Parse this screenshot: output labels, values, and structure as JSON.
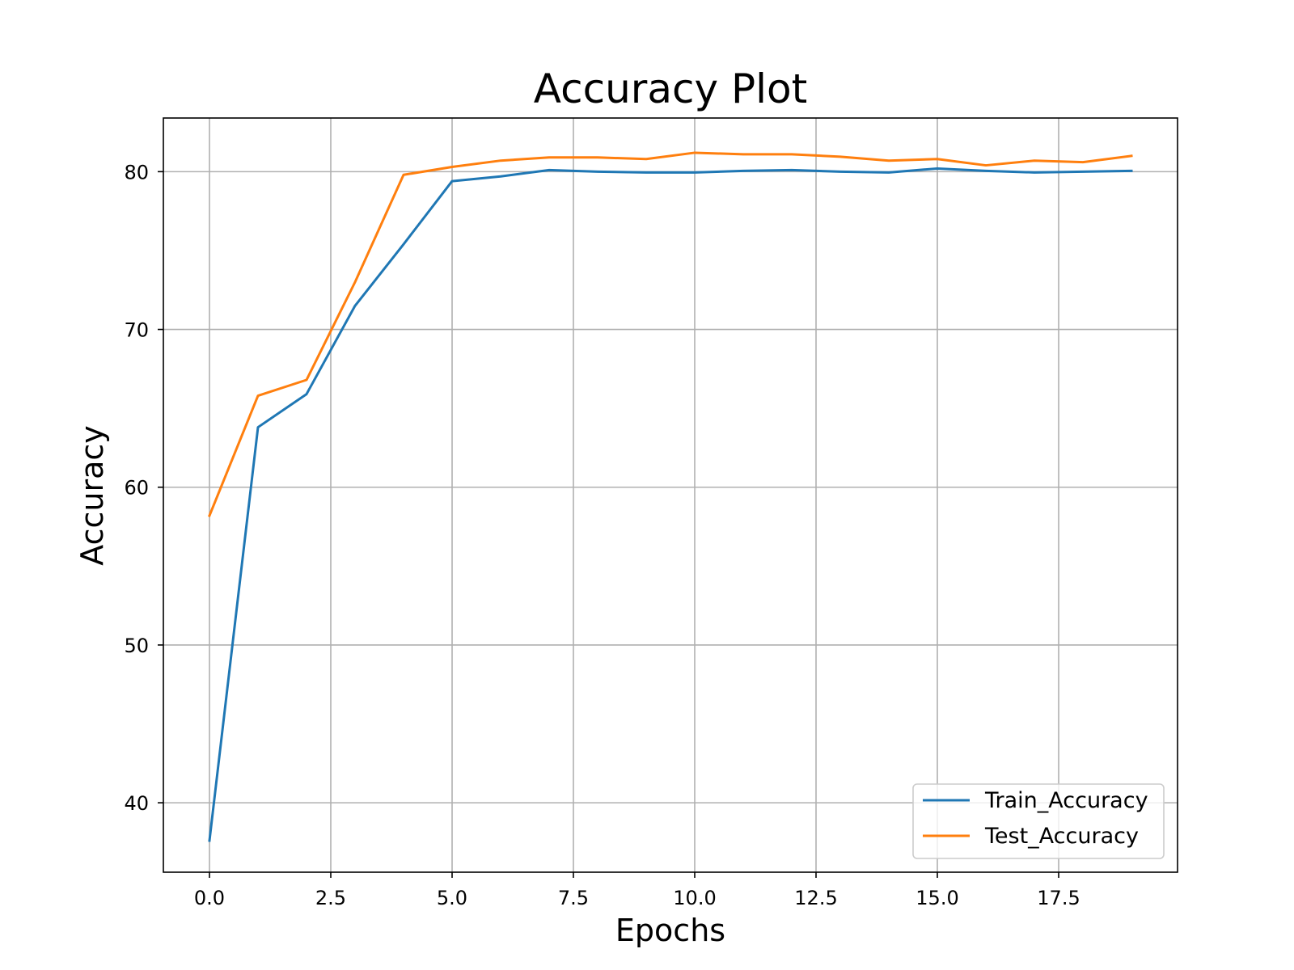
{
  "chart_data": {
    "type": "line",
    "title": "Accuracy Plot",
    "xlabel": "Epochs",
    "ylabel": "Accuracy",
    "xlim": [
      -0.95,
      19.95
    ],
    "ylim": [
      35.6,
      83.4
    ],
    "x_ticks": [
      0,
      2.5,
      5,
      7.5,
      10,
      12.5,
      15,
      17.5
    ],
    "x_tick_labels": [
      "0.0",
      "2.5",
      "5.0",
      "7.5",
      "10.0",
      "12.5",
      "15.0",
      "17.5"
    ],
    "y_ticks": [
      40,
      50,
      60,
      70,
      80
    ],
    "y_tick_labels": [
      "40",
      "50",
      "60",
      "70",
      "80"
    ],
    "grid": true,
    "legend_position": "lower-right",
    "x": [
      0,
      1,
      2,
      3,
      4,
      5,
      6,
      7,
      8,
      9,
      10,
      11,
      12,
      13,
      14,
      15,
      16,
      17,
      18,
      19
    ],
    "series": [
      {
        "name": "Train_Accuracy",
        "color": "#1f77b4",
        "values": [
          37.6,
          63.8,
          65.9,
          71.5,
          75.4,
          79.4,
          79.7,
          80.1,
          80.0,
          79.95,
          79.95,
          80.05,
          80.1,
          80.0,
          79.95,
          80.2,
          80.05,
          79.95,
          80.0,
          80.05
        ]
      },
      {
        "name": "Test_Accuracy",
        "color": "#ff7f0e",
        "values": [
          58.2,
          65.8,
          66.8,
          73.0,
          79.8,
          80.3,
          80.7,
          80.9,
          80.9,
          80.8,
          81.2,
          81.1,
          81.1,
          80.95,
          80.7,
          80.8,
          80.4,
          80.7,
          80.6,
          81.0
        ]
      }
    ]
  }
}
